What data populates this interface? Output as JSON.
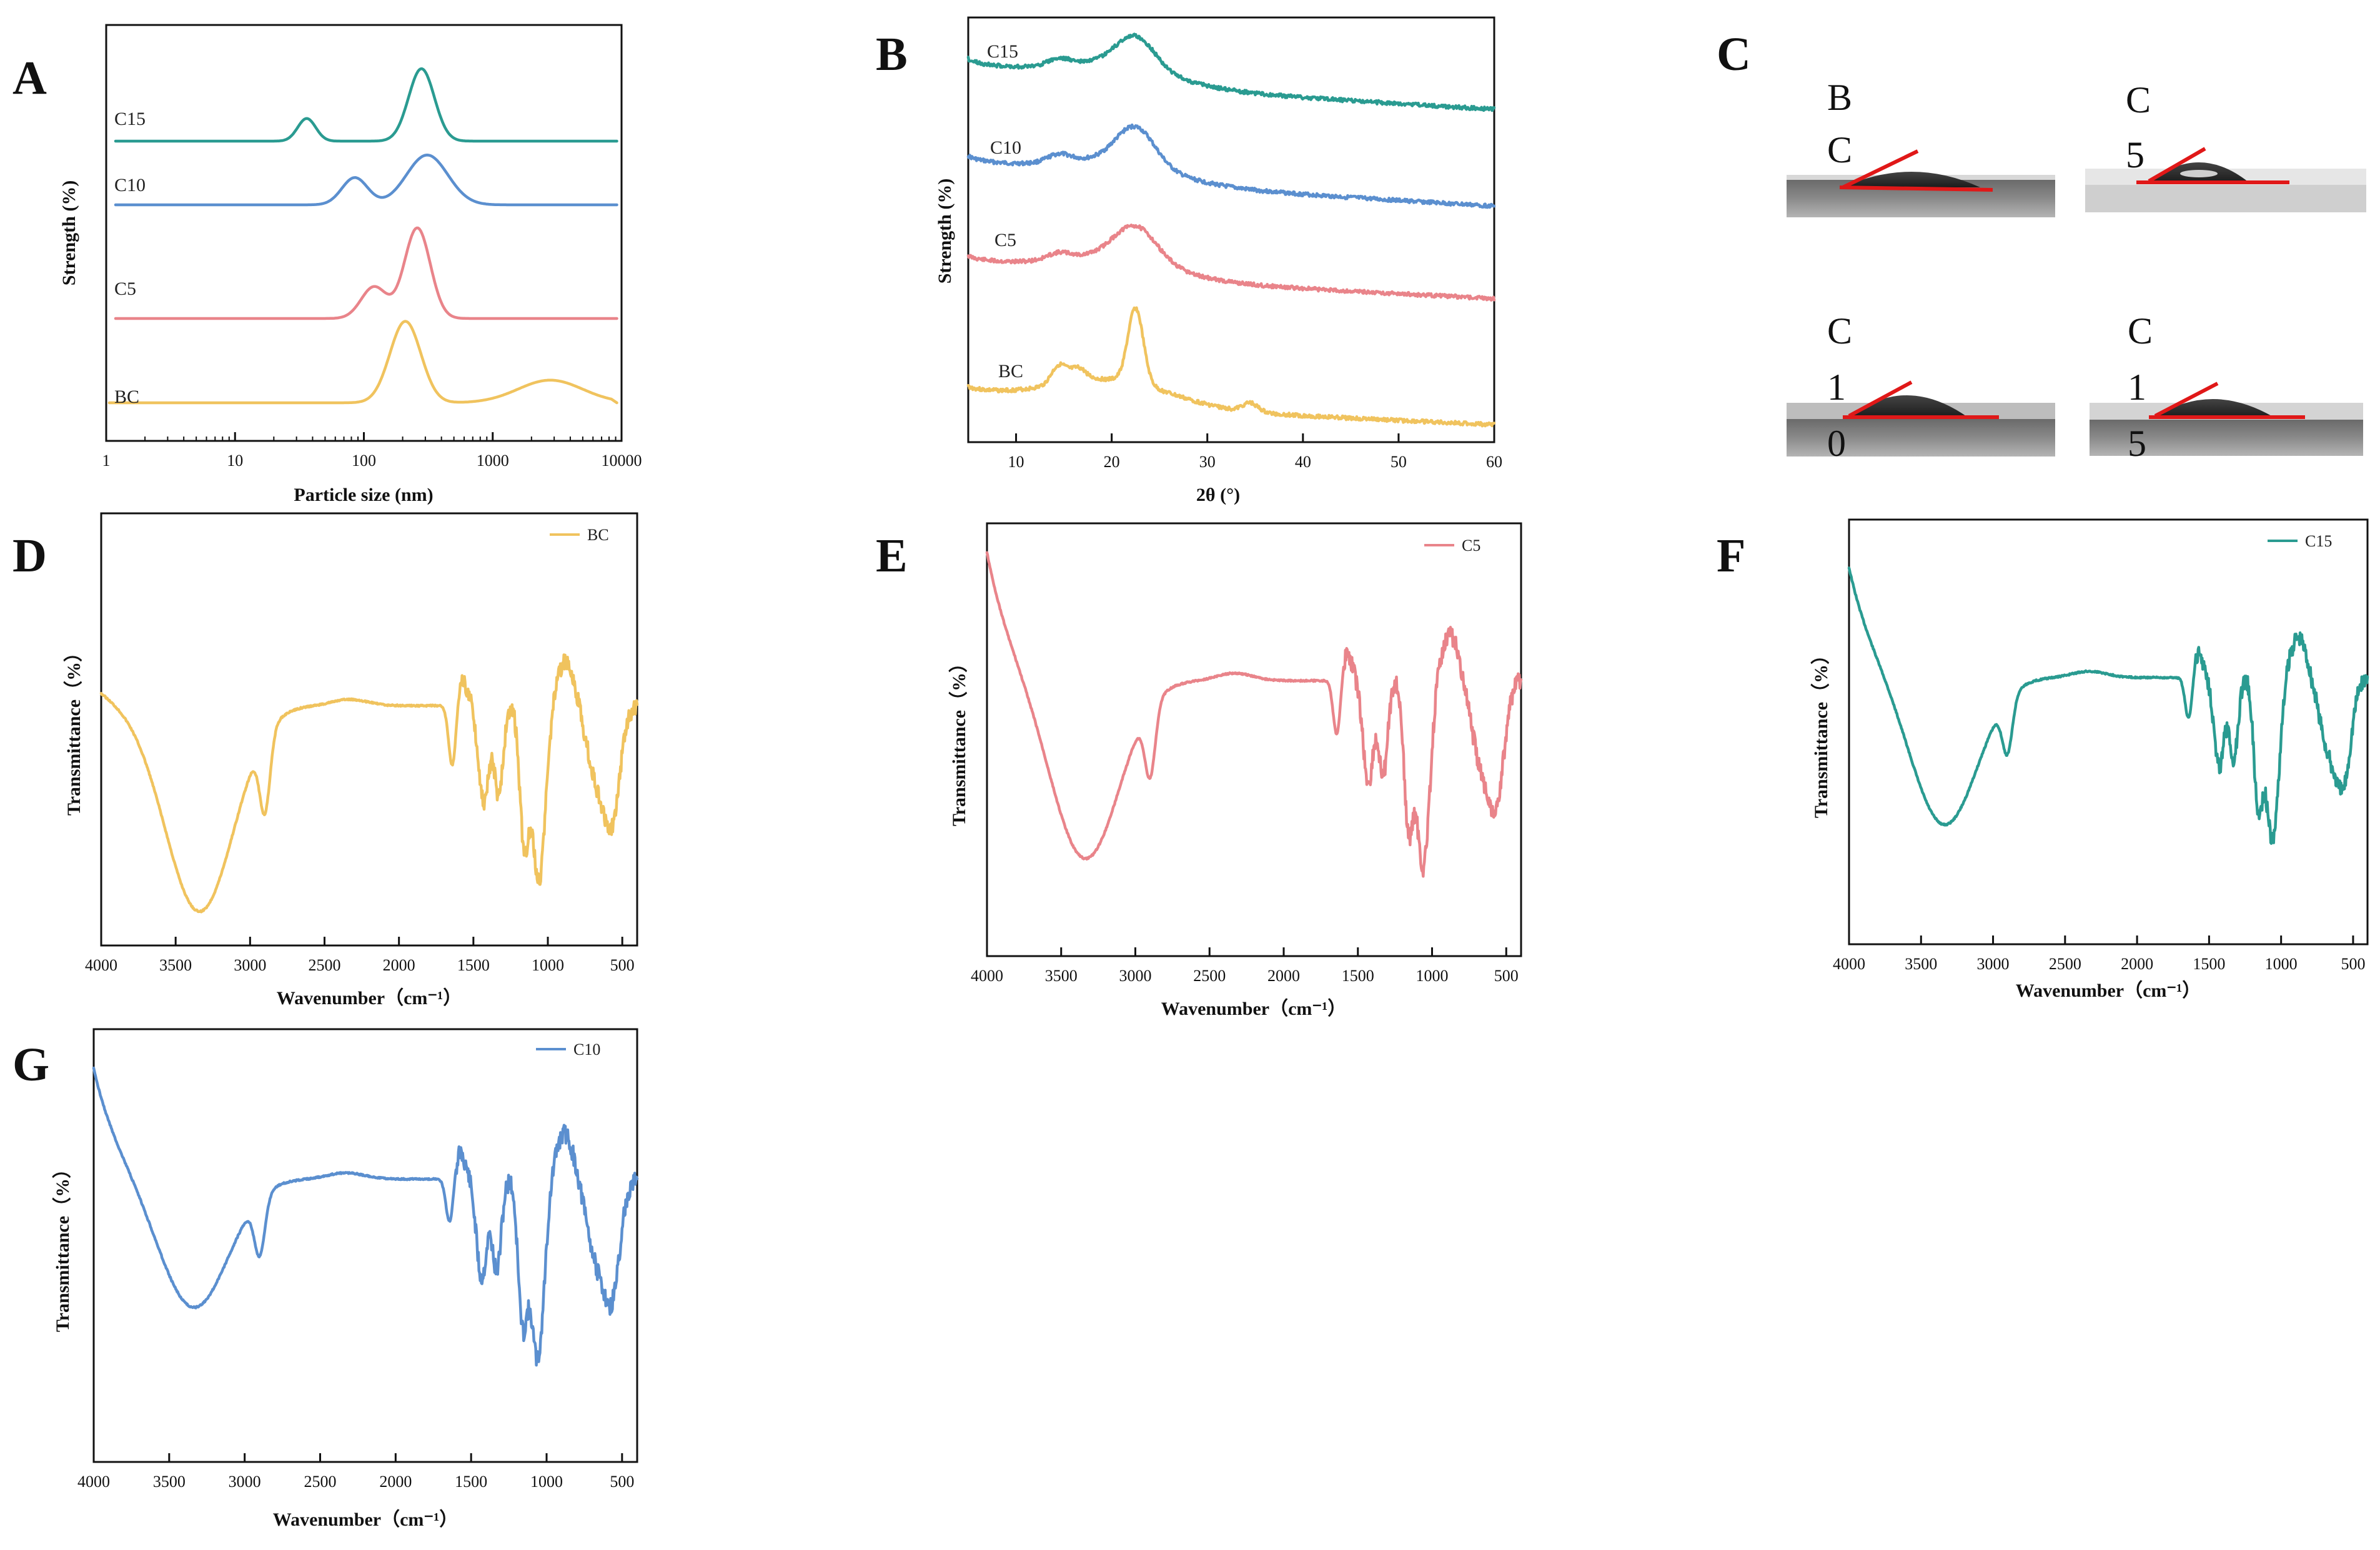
{
  "colors": {
    "BC": "#f0c35e",
    "C5": "#e9848a",
    "C10": "#5b8fcf",
    "C15": "#2a9b91"
  },
  "panels": {
    "A": "A",
    "B": "B",
    "C": "C",
    "D": "D",
    "E": "E",
    "F": "F",
    "G": "G"
  },
  "contact_angle": {
    "BC": [
      "B",
      "C"
    ],
    "C5": [
      "C",
      "5"
    ],
    "C10": [
      "C",
      "1",
      "0"
    ],
    "C15": [
      "C",
      "1",
      "5"
    ]
  },
  "chart_data": [
    {
      "id": "A",
      "type": "line",
      "title": "",
      "xlabel": "Particle size (nm)",
      "ylabel": "Strength (%)",
      "xscale": "log",
      "xlim": [
        1,
        10000
      ],
      "xticks": [
        "1",
        "10",
        "100",
        "1000",
        "10000"
      ],
      "legend": "inline-left",
      "series": [
        {
          "name": "BC",
          "baseline": 0.0,
          "line_start": 1.0,
          "segments": [
            [
              210,
              0.9,
              0.12
            ],
            [
              2800,
              0.25,
              0.25
            ]
          ],
          "range": [
            120,
            9000
          ]
        },
        {
          "name": "C5",
          "baseline": 1.0,
          "line_start": 1.0,
          "segments": [
            [
              260,
              1.0,
              0.1
            ],
            [
              120,
              0.35,
              0.1
            ]
          ],
          "range": [
            80,
            9000
          ]
        },
        {
          "name": "C10",
          "baseline": 2.1,
          "line_start": 1.0,
          "segments": [
            [
              310,
              0.55,
              0.16
            ],
            [
              85,
              0.3,
              0.1
            ]
          ],
          "range": [
            50,
            9000
          ]
        },
        {
          "name": "C15",
          "baseline": 3.1,
          "line_start": 1.0,
          "segments": [
            [
              280,
              0.8,
              0.1
            ],
            [
              36,
              0.25,
              0.07
            ]
          ],
          "range": [
            25,
            9000
          ]
        }
      ],
      "labels": [
        "BC",
        "C5",
        "C10",
        "C15"
      ]
    },
    {
      "id": "B",
      "type": "line",
      "title": "",
      "xlabel": "2θ (°)",
      "ylabel": "Strength (%)",
      "xlim": [
        5,
        60
      ],
      "xticks": [
        "10",
        "20",
        "30",
        "40",
        "50",
        "60"
      ],
      "legend": "inline-left",
      "peaks": [
        14.5,
        16.5,
        22.5,
        34.5
      ],
      "labels": [
        "BC",
        "C5",
        "C10",
        "C15"
      ]
    },
    {
      "id": "D",
      "type": "line",
      "series_name": "BC",
      "xlabel": "Wavenumber（cm⁻¹）",
      "ylabel": "Transmittance（%）",
      "xlim": [
        4000,
        400
      ],
      "xticks": [
        "4000",
        "3500",
        "3000",
        "2500",
        "2000",
        "1500",
        "1000",
        "500"
      ],
      "legend": "top-right",
      "bands_cm1": [
        3340,
        2900,
        1640,
        1430,
        1370,
        1160,
        1060,
        900,
        660
      ]
    },
    {
      "id": "E",
      "type": "line",
      "series_name": "C5",
      "xlabel": "Wavenumber（cm⁻¹）",
      "ylabel": "Transmittance（%）",
      "xlim": [
        4000,
        400
      ],
      "xticks": [
        "4000",
        "3500",
        "3000",
        "2500",
        "2000",
        "1500",
        "1000",
        "500"
      ],
      "legend": "top-right",
      "bands_cm1": [
        3340,
        2900,
        1640,
        1430,
        1370,
        1160,
        1060,
        900,
        660
      ]
    },
    {
      "id": "F",
      "type": "line",
      "series_name": "C15",
      "xlabel": "Wavenumber（cm⁻¹）",
      "ylabel": "Transmittance（%）",
      "xlim": [
        4000,
        400
      ],
      "xticks": [
        "4000",
        "3500",
        "3000",
        "2500",
        "2000",
        "1500",
        "1000",
        "500"
      ],
      "legend": "top-right",
      "bands_cm1": [
        3340,
        2900,
        1640,
        1430,
        1370,
        1160,
        1060,
        900,
        660
      ]
    },
    {
      "id": "G",
      "type": "line",
      "series_name": "C10",
      "xlabel": "Wavenumber（cm⁻¹）",
      "ylabel": "Transmittance（%）",
      "xlim": [
        4000,
        400
      ],
      "xticks": [
        "4000",
        "3500",
        "3000",
        "2500",
        "2000",
        "1500",
        "1000",
        "500"
      ],
      "legend": "top-right",
      "bands_cm1": [
        3340,
        2900,
        1640,
        1430,
        1370,
        1160,
        1060,
        900,
        660
      ]
    }
  ]
}
